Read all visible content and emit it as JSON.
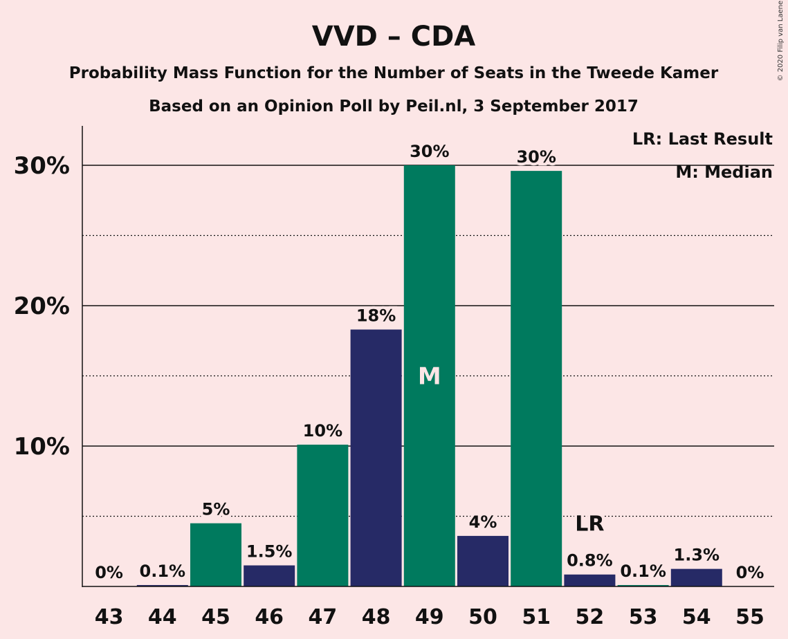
{
  "chart_data": {
    "type": "bar",
    "title": "VVD – CDA",
    "subtitle": "Probability Mass Function for the Number of Seats in the Tweede Kamer",
    "subtitle2": "Based on an Opinion Poll by Peil.nl, 3 September 2017",
    "copyright": "© 2020 Filip van Laenen",
    "legend": {
      "lr": "LR: Last Result",
      "m": "M: Median",
      "placement": "top-right"
    },
    "xlabel": "",
    "ylabel": "",
    "categories": [
      "43",
      "44",
      "45",
      "46",
      "47",
      "48",
      "49",
      "50",
      "51",
      "52",
      "53",
      "54",
      "55"
    ],
    "values": [
      0,
      0.1,
      4.5,
      1.5,
      10.1,
      18.3,
      30.0,
      3.6,
      29.6,
      0.85,
      0.1,
      1.25,
      0
    ],
    "labels": [
      "0%",
      "0.1%",
      "5%",
      "1.5%",
      "10%",
      "18%",
      "30%",
      "4%",
      "30%",
      "0.8%",
      "0.1%",
      "1.3%",
      "0%"
    ],
    "colors": [
      "#007a5e",
      "#262a66",
      "#007a5e",
      "#262a66",
      "#007a5e",
      "#262a66",
      "#007a5e",
      "#262a66",
      "#007a5e",
      "#262a66",
      "#007a5e",
      "#262a66",
      "#007a5e"
    ],
    "ylim": [
      0,
      32.5
    ],
    "yticks": [
      {
        "value": 10,
        "label": "10%"
      },
      {
        "value": 20,
        "label": "20%"
      },
      {
        "value": 30,
        "label": "30%"
      }
    ],
    "dotted_gridlines": [
      5,
      15,
      25
    ],
    "median_category": "49",
    "median_marker": "M",
    "last_result_category": "52",
    "last_result_marker": "LR",
    "background_color": "#fce6e6",
    "series_colors": {
      "primary": "#007a5e",
      "secondary": "#262a66"
    }
  }
}
